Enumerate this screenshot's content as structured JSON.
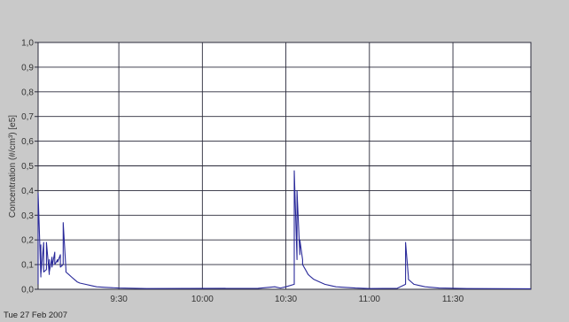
{
  "footer_date": "Tue 27 Feb 2007",
  "colors": {
    "background": "#c9c9c9",
    "plot_background": "#ffffff",
    "grid": "#2a2a3a",
    "series": "#2a2a9a",
    "text": "#333333"
  },
  "chart_data": {
    "type": "line",
    "title": "",
    "xlabel": "",
    "ylabel": "Concentration (#/cm³) [e5]",
    "grid": true,
    "legend": "none",
    "ylim": [
      0,
      1.0
    ],
    "xlim": [
      "9:01",
      "11:58"
    ],
    "x_ticks": [
      "9:30",
      "10:00",
      "10:30",
      "11:00",
      "11:30"
    ],
    "y_ticks": [
      "0,0",
      "0,1",
      "0,2",
      "0,3",
      "0,4",
      "0,5",
      "0,6",
      "0,7",
      "0,8",
      "0,9",
      "1,0"
    ],
    "series": [
      {
        "x": [
          "9:01",
          "9:01",
          "9:02",
          "9:02",
          "9:02",
          "9:03",
          "9:03",
          "9:04",
          "9:04",
          "9:05",
          "9:05",
          "9:05",
          "9:06",
          "9:06",
          "9:07",
          "9:07",
          "9:08",
          "9:08",
          "9:09",
          "9:09",
          "9:10",
          "9:10",
          "9:11",
          "9:11",
          "9:12",
          "9:13",
          "9:14",
          "9:15",
          "9:16",
          "9:18",
          "9:20",
          "9:22",
          "9:25",
          "9:30",
          "9:40",
          "10:20",
          "10:26",
          "10:28",
          "10:30",
          "10:33",
          "10:33",
          "10:34",
          "10:34",
          "10:35",
          "10:35",
          "10:36",
          "10:36",
          "10:37",
          "10:38",
          "10:39",
          "10:40",
          "10:42",
          "10:44",
          "10:46",
          "10:48",
          "10:51",
          "10:55",
          "11:00",
          "11:10",
          "11:13",
          "11:13",
          "11:14",
          "11:14",
          "11:15",
          "11:16",
          "11:18",
          "11:20",
          "11:25",
          "11:35",
          "11:58"
        ],
        "y": [
          0.02,
          0.39,
          0.05,
          0.18,
          0.06,
          0.19,
          0.07,
          0.08,
          0.19,
          0.06,
          0.12,
          0.07,
          0.13,
          0.09,
          0.15,
          0.1,
          0.12,
          0.11,
          0.14,
          0.09,
          0.1,
          0.27,
          0.08,
          0.07,
          0.06,
          0.05,
          0.04,
          0.03,
          0.025,
          0.02,
          0.015,
          0.01,
          0.008,
          0.005,
          0.003,
          0.004,
          0.01,
          0.005,
          0.01,
          0.02,
          0.48,
          0.12,
          0.4,
          0.14,
          0.2,
          0.12,
          0.1,
          0.08,
          0.06,
          0.05,
          0.04,
          0.03,
          0.02,
          0.015,
          0.01,
          0.008,
          0.005,
          0.003,
          0.004,
          0.02,
          0.19,
          0.05,
          0.04,
          0.03,
          0.02,
          0.015,
          0.01,
          0.005,
          0.003,
          0.002
        ]
      }
    ]
  }
}
